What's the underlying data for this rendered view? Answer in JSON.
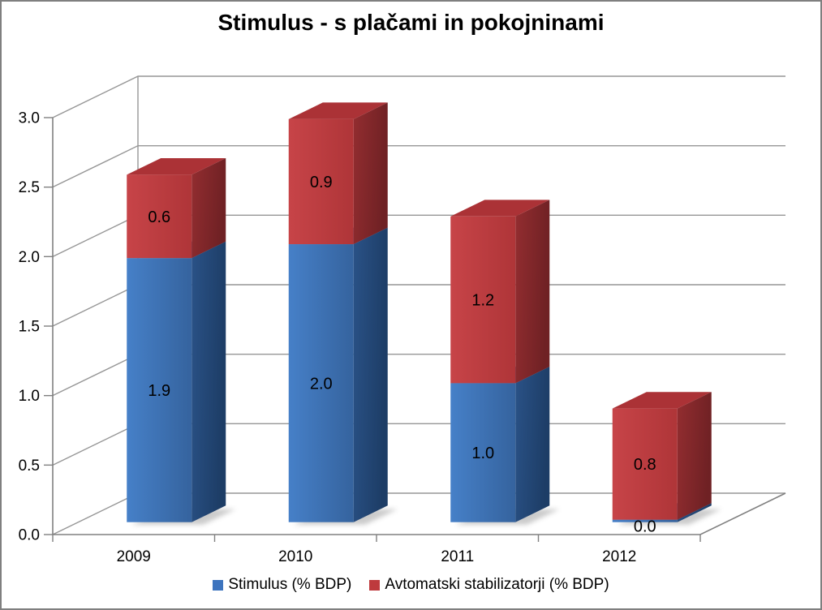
{
  "title": "Stimulus - s plačami in pokojninami",
  "chart_data": {
    "type": "bar",
    "subtype": "stacked-3d-column",
    "categories": [
      "2009",
      "2010",
      "2011",
      "2012"
    ],
    "series": [
      {
        "name": "Stimulus (% BDP)",
        "color": "#3D74BE",
        "values": [
          1.9,
          2.0,
          1.0,
          0.0
        ],
        "shades": {
          "front": [
            "#4680C8",
            "#35639E"
          ],
          "side": [
            "#2A5287",
            "#1D3D66"
          ],
          "top": "#4C7DB8"
        }
      },
      {
        "name": "Avtomatski stabilizatorji (% BDP)",
        "color": "#BE3A3D",
        "values": [
          0.6,
          0.9,
          1.2,
          0.8
        ],
        "shades": {
          "front": [
            "#C74448",
            "#AF3538"
          ],
          "side": [
            "#932D30",
            "#6F2124"
          ],
          "top": "#AB3236"
        }
      }
    ],
    "data_labels": [
      [
        "1.9",
        "2.0",
        "1.0",
        "0.0"
      ],
      [
        "0.6",
        "0.9",
        "1.2",
        "0.8"
      ]
    ],
    "ylim": [
      0,
      3
    ],
    "ytick_step": 0.5,
    "yticks": [
      "0.0",
      "0.5",
      "1.0",
      "1.5",
      "2.0",
      "2.5",
      "3.0"
    ],
    "grid": true,
    "legend_position": "bottom",
    "gridline_color": "#969696",
    "axis_color": "#808080",
    "label_color": "#000000",
    "shadow_color": "#8c8c8c"
  }
}
